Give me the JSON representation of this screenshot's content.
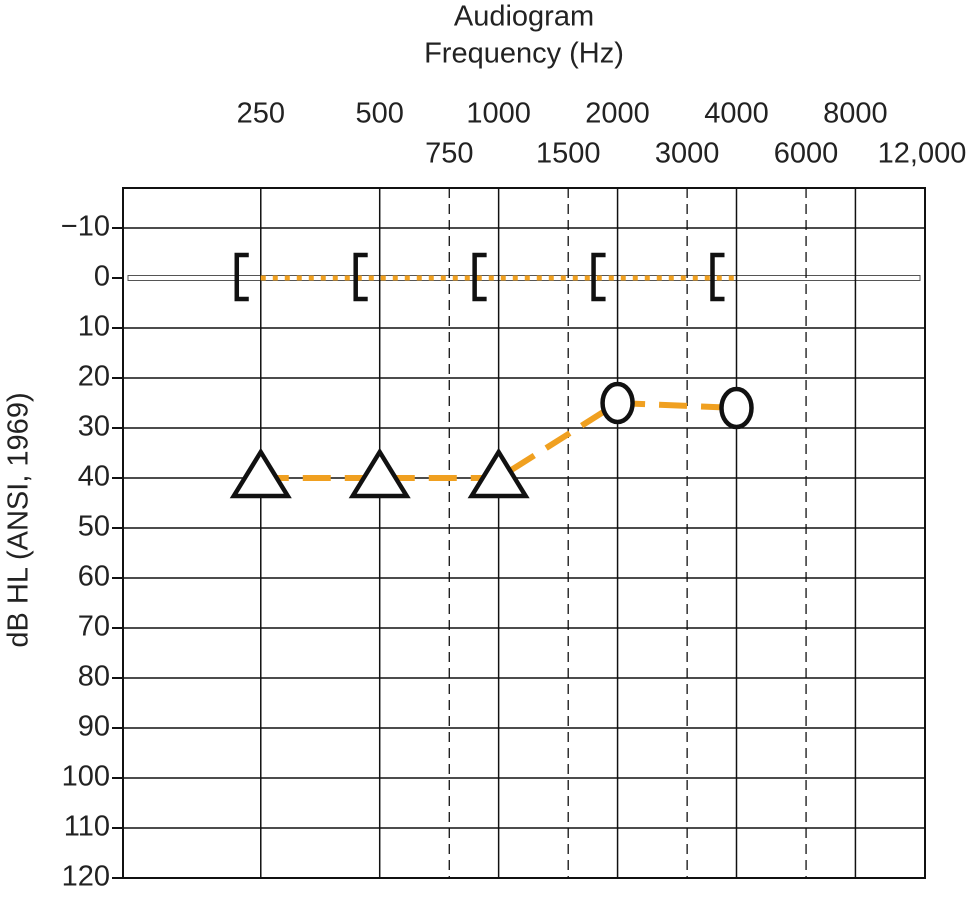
{
  "chart_data": {
    "type": "audiogram",
    "title": "Audiogram",
    "x_label": "Frequency (Hz)",
    "y_label": "dB HL (ANSI, 1969)",
    "x_log": true,
    "y_inverted": true,
    "xlim": [
      112,
      12000
    ],
    "ylim": [
      -18,
      120
    ],
    "xticks": [
      250,
      500,
      1000,
      2000,
      4000,
      8000
    ],
    "x_minor_ticks": [
      750,
      1500,
      3000,
      6000,
      {
        "value": 12000,
        "label": "12,000"
      }
    ],
    "yticks": [
      {
        "value": -10,
        "label": "−10"
      },
      0,
      10,
      20,
      30,
      40,
      50,
      60,
      70,
      80,
      90,
      100,
      110,
      120
    ],
    "grid": true,
    "series": [
      {
        "color": "#f0a020",
        "line_style": "dotted",
        "marker": "bracket",
        "x": [
          250,
          500,
          1000,
          2000,
          4000
        ],
        "values": [
          0,
          0,
          0,
          0,
          0
        ]
      },
      {
        "color": "#f0a020",
        "line_style": "dashed",
        "markers": [
          "triangle",
          "triangle",
          "triangle",
          "circle",
          "circle"
        ],
        "x": [
          250,
          500,
          1000,
          2000,
          4000
        ],
        "values": [
          40,
          40,
          40,
          25,
          26
        ]
      }
    ]
  }
}
